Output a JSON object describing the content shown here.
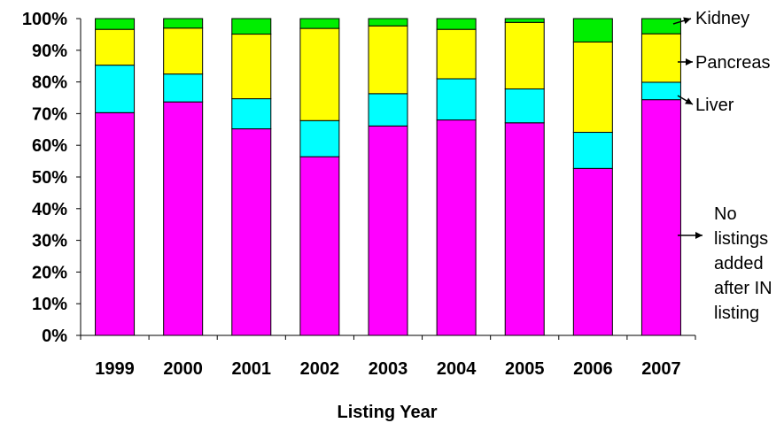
{
  "chart_data": {
    "type": "bar",
    "stacked": true,
    "percent": true,
    "xlabel": "Listing Year",
    "ylabel": "",
    "ylim": [
      0,
      100
    ],
    "yticks": [
      "0%",
      "10%",
      "20%",
      "30%",
      "40%",
      "50%",
      "60%",
      "70%",
      "80%",
      "90%",
      "100%"
    ],
    "categories": [
      "1999",
      "2000",
      "2001",
      "2002",
      "2003",
      "2004",
      "2005",
      "2006",
      "2007"
    ],
    "series": [
      {
        "name": "No listings added after IN listing",
        "color": "#ff00ff",
        "values": [
          70.3,
          73.7,
          65.2,
          56.4,
          66.1,
          68.0,
          67.1,
          52.7,
          74.4
        ]
      },
      {
        "name": "Liver",
        "color": "#00ffff",
        "values": [
          15.0,
          8.8,
          9.5,
          11.4,
          10.2,
          13.0,
          10.7,
          11.4,
          5.5
        ]
      },
      {
        "name": "Pancreas",
        "color": "#ffff00",
        "values": [
          11.3,
          14.5,
          20.4,
          29.1,
          21.4,
          15.6,
          21.0,
          28.5,
          15.3
        ]
      },
      {
        "name": "Kidney",
        "color": "#00ee00",
        "values": [
          3.4,
          3.0,
          4.9,
          3.1,
          2.3,
          3.4,
          1.2,
          7.4,
          4.8
        ]
      }
    ],
    "annotations": [
      {
        "series": 3,
        "lines": [
          "Kidney"
        ]
      },
      {
        "series": 2,
        "lines": [
          "Pancreas"
        ]
      },
      {
        "series": 1,
        "lines": [
          "Liver"
        ]
      },
      {
        "series": 0,
        "lines": [
          "No",
          "listings",
          "added",
          "after IN",
          "listing"
        ]
      }
    ],
    "grid": false,
    "legend": "right (arrow annotations)"
  }
}
